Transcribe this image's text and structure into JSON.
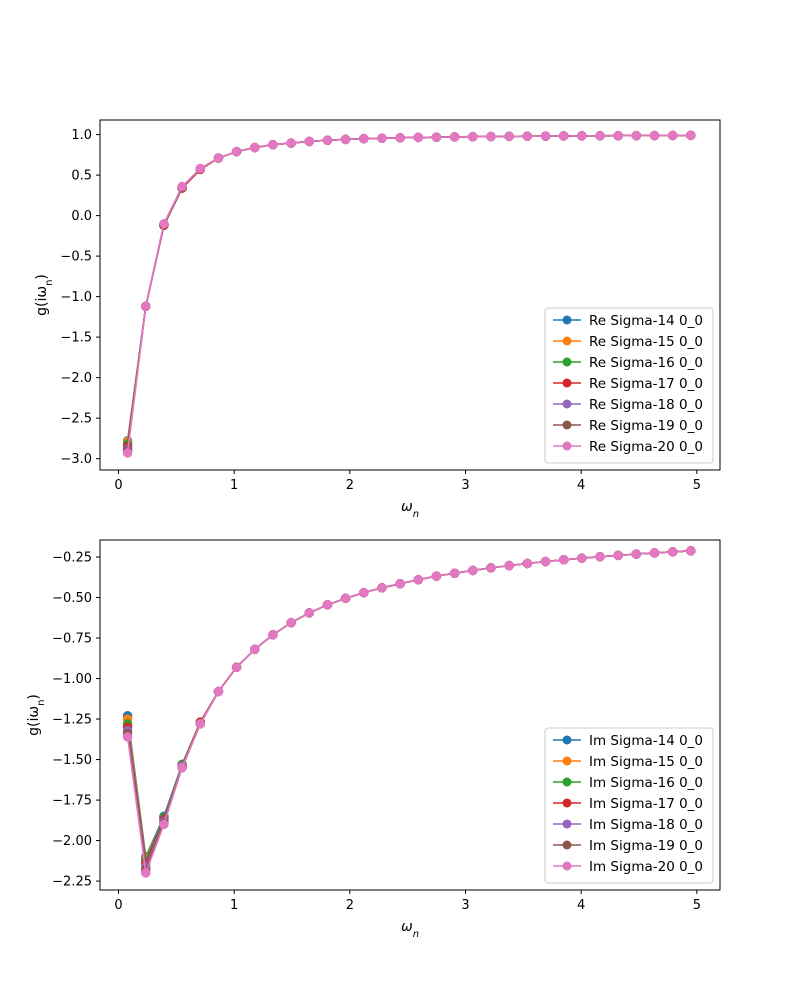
{
  "chart_data": [
    {
      "type": "line",
      "xlabel": "ω_n",
      "ylabel": "g(iω_n)",
      "xlim": [
        -0.16,
        5.2
      ],
      "ylim": [
        -3.14,
        1.18
      ],
      "xticks": [
        0,
        1,
        2,
        3,
        4,
        5
      ],
      "yticks": [
        -3.0,
        -2.5,
        -2.0,
        -1.5,
        -1.0,
        -0.5,
        0.0,
        0.5,
        1.0
      ],
      "legend_position": "lower-right",
      "grid": false,
      "x": [
        0.0785,
        0.2356,
        0.3927,
        0.5498,
        0.7069,
        0.8639,
        1.021,
        1.1781,
        1.3352,
        1.4923,
        1.6493,
        1.8064,
        1.9635,
        2.1206,
        2.2777,
        2.4347,
        2.5918,
        2.7489,
        2.906,
        3.0631,
        3.2201,
        3.3772,
        3.5343,
        3.6914,
        3.8485,
        4.0055,
        4.1626,
        4.3197,
        4.4768,
        4.6339,
        4.7909,
        4.948
      ],
      "series": [
        {
          "name": "Re Sigma-14 0_0",
          "color": "#1f77b4",
          "y": [
            -2.78,
            -1.12,
            -0.12,
            0.34,
            0.57,
            0.71,
            0.79,
            0.84,
            0.875,
            0.895,
            0.915,
            0.93,
            0.94,
            0.95,
            0.955,
            0.96,
            0.965,
            0.968,
            0.971,
            0.974,
            0.976,
            0.978,
            0.98,
            0.981,
            0.983,
            0.984,
            0.985,
            0.986,
            0.987,
            0.988,
            0.989,
            0.99
          ]
        },
        {
          "name": "Re Sigma-15 0_0",
          "color": "#ff7f0e",
          "y": [
            -2.79,
            -1.12,
            -0.12,
            0.34,
            0.57,
            0.71,
            0.79,
            0.84,
            0.875,
            0.895,
            0.915,
            0.93,
            0.94,
            0.95,
            0.955,
            0.96,
            0.965,
            0.968,
            0.971,
            0.974,
            0.976,
            0.978,
            0.98,
            0.981,
            0.983,
            0.984,
            0.985,
            0.986,
            0.987,
            0.988,
            0.989,
            0.99
          ]
        },
        {
          "name": "Re Sigma-16 0_0",
          "color": "#2ca02c",
          "y": [
            -2.82,
            -1.12,
            -0.12,
            0.34,
            0.57,
            0.71,
            0.79,
            0.84,
            0.875,
            0.895,
            0.915,
            0.93,
            0.94,
            0.95,
            0.955,
            0.96,
            0.965,
            0.968,
            0.971,
            0.974,
            0.976,
            0.978,
            0.98,
            0.981,
            0.983,
            0.984,
            0.985,
            0.986,
            0.987,
            0.988,
            0.989,
            0.99
          ]
        },
        {
          "name": "Re Sigma-17 0_0",
          "color": "#d62728",
          "y": [
            -2.85,
            -1.12,
            -0.12,
            0.34,
            0.57,
            0.71,
            0.79,
            0.84,
            0.875,
            0.895,
            0.915,
            0.93,
            0.94,
            0.95,
            0.955,
            0.96,
            0.965,
            0.968,
            0.971,
            0.974,
            0.976,
            0.978,
            0.98,
            0.981,
            0.983,
            0.984,
            0.985,
            0.986,
            0.987,
            0.988,
            0.989,
            0.99
          ]
        },
        {
          "name": "Re Sigma-18 0_0",
          "color": "#9467bd",
          "y": [
            -2.88,
            -1.12,
            -0.11,
            0.35,
            0.58,
            0.71,
            0.79,
            0.84,
            0.875,
            0.895,
            0.915,
            0.93,
            0.94,
            0.95,
            0.955,
            0.96,
            0.965,
            0.968,
            0.971,
            0.974,
            0.976,
            0.978,
            0.98,
            0.981,
            0.983,
            0.984,
            0.985,
            0.986,
            0.987,
            0.988,
            0.989,
            0.99
          ]
        },
        {
          "name": "Re Sigma-19 0_0",
          "color": "#8c564b",
          "y": [
            -2.9,
            -1.12,
            -0.11,
            0.35,
            0.58,
            0.71,
            0.79,
            0.84,
            0.875,
            0.895,
            0.915,
            0.93,
            0.94,
            0.95,
            0.955,
            0.96,
            0.965,
            0.968,
            0.971,
            0.974,
            0.976,
            0.978,
            0.98,
            0.981,
            0.983,
            0.984,
            0.985,
            0.986,
            0.987,
            0.988,
            0.989,
            0.99
          ]
        },
        {
          "name": "Re Sigma-20 0_0",
          "color": "#e377c2",
          "y": [
            -2.93,
            -1.12,
            -0.1,
            0.36,
            0.58,
            0.71,
            0.79,
            0.84,
            0.875,
            0.895,
            0.915,
            0.93,
            0.94,
            0.95,
            0.955,
            0.96,
            0.965,
            0.968,
            0.971,
            0.974,
            0.976,
            0.978,
            0.98,
            0.981,
            0.983,
            0.984,
            0.985,
            0.986,
            0.987,
            0.988,
            0.989,
            0.99
          ]
        }
      ]
    },
    {
      "type": "line",
      "xlabel": "ω_n",
      "ylabel": "g(iω_n)",
      "xlim": [
        -0.16,
        5.2
      ],
      "ylim": [
        -2.305,
        -0.145
      ],
      "xticks": [
        0,
        1,
        2,
        3,
        4,
        5
      ],
      "yticks": [
        -2.25,
        -2.0,
        -1.75,
        -1.5,
        -1.25,
        -1.0,
        -0.75,
        -0.5,
        -0.25
      ],
      "legend_position": "lower-right",
      "grid": false,
      "x": [
        0.0785,
        0.2356,
        0.3927,
        0.5498,
        0.7069,
        0.8639,
        1.021,
        1.1781,
        1.3352,
        1.4923,
        1.6493,
        1.8064,
        1.9635,
        2.1206,
        2.2777,
        2.4347,
        2.5918,
        2.7489,
        2.906,
        3.0631,
        3.2201,
        3.3772,
        3.5343,
        3.6914,
        3.8485,
        4.0055,
        4.1626,
        4.3197,
        4.4768,
        4.6339,
        4.7909,
        4.948
      ],
      "series": [
        {
          "name": "Im Sigma-14 0_0",
          "color": "#1f77b4",
          "y": [
            -1.23,
            -2.1,
            -1.85,
            -1.53,
            -1.27,
            -1.08,
            -0.93,
            -0.82,
            -0.73,
            -0.655,
            -0.595,
            -0.545,
            -0.505,
            -0.47,
            -0.44,
            -0.415,
            -0.39,
            -0.368,
            -0.35,
            -0.333,
            -0.317,
            -0.303,
            -0.29,
            -0.278,
            -0.267,
            -0.257,
            -0.248,
            -0.24,
            -0.232,
            -0.225,
            -0.218,
            -0.212
          ]
        },
        {
          "name": "Im Sigma-15 0_0",
          "color": "#ff7f0e",
          "y": [
            -1.25,
            -2.11,
            -1.86,
            -1.53,
            -1.27,
            -1.08,
            -0.93,
            -0.82,
            -0.73,
            -0.655,
            -0.595,
            -0.545,
            -0.505,
            -0.47,
            -0.44,
            -0.415,
            -0.39,
            -0.368,
            -0.35,
            -0.333,
            -0.317,
            -0.303,
            -0.29,
            -0.278,
            -0.267,
            -0.257,
            -0.248,
            -0.24,
            -0.232,
            -0.225,
            -0.218,
            -0.212
          ]
        },
        {
          "name": "Im Sigma-16 0_0",
          "color": "#2ca02c",
          "y": [
            -1.28,
            -2.12,
            -1.86,
            -1.53,
            -1.27,
            -1.08,
            -0.93,
            -0.82,
            -0.73,
            -0.655,
            -0.595,
            -0.545,
            -0.505,
            -0.47,
            -0.44,
            -0.415,
            -0.39,
            -0.368,
            -0.35,
            -0.333,
            -0.317,
            -0.303,
            -0.29,
            -0.278,
            -0.267,
            -0.257,
            -0.248,
            -0.24,
            -0.232,
            -0.225,
            -0.218,
            -0.212
          ]
        },
        {
          "name": "Im Sigma-17 0_0",
          "color": "#d62728",
          "y": [
            -1.3,
            -2.14,
            -1.87,
            -1.54,
            -1.27,
            -1.08,
            -0.93,
            -0.82,
            -0.73,
            -0.655,
            -0.595,
            -0.545,
            -0.505,
            -0.47,
            -0.44,
            -0.415,
            -0.39,
            -0.368,
            -0.35,
            -0.333,
            -0.317,
            -0.303,
            -0.29,
            -0.278,
            -0.267,
            -0.257,
            -0.248,
            -0.24,
            -0.232,
            -0.225,
            -0.218,
            -0.212
          ]
        },
        {
          "name": "Im Sigma-18 0_0",
          "color": "#9467bd",
          "y": [
            -1.32,
            -2.16,
            -1.88,
            -1.54,
            -1.28,
            -1.08,
            -0.93,
            -0.82,
            -0.73,
            -0.655,
            -0.595,
            -0.545,
            -0.505,
            -0.47,
            -0.44,
            -0.415,
            -0.39,
            -0.368,
            -0.35,
            -0.333,
            -0.317,
            -0.303,
            -0.29,
            -0.278,
            -0.267,
            -0.257,
            -0.248,
            -0.24,
            -0.232,
            -0.225,
            -0.218,
            -0.212
          ]
        },
        {
          "name": "Im Sigma-19 0_0",
          "color": "#8c564b",
          "y": [
            -1.34,
            -2.18,
            -1.89,
            -1.55,
            -1.28,
            -1.08,
            -0.93,
            -0.82,
            -0.73,
            -0.655,
            -0.595,
            -0.545,
            -0.505,
            -0.47,
            -0.44,
            -0.415,
            -0.39,
            -0.368,
            -0.35,
            -0.333,
            -0.317,
            -0.303,
            -0.29,
            -0.278,
            -0.267,
            -0.257,
            -0.248,
            -0.24,
            -0.232,
            -0.225,
            -0.218,
            -0.212
          ]
        },
        {
          "name": "Im Sigma-20 0_0",
          "color": "#e377c2",
          "y": [
            -1.36,
            -2.2,
            -1.9,
            -1.55,
            -1.28,
            -1.08,
            -0.93,
            -0.82,
            -0.73,
            -0.655,
            -0.595,
            -0.545,
            -0.505,
            -0.47,
            -0.44,
            -0.415,
            -0.39,
            -0.368,
            -0.35,
            -0.333,
            -0.317,
            -0.303,
            -0.29,
            -0.278,
            -0.267,
            -0.257,
            -0.248,
            -0.24,
            -0.232,
            -0.225,
            -0.218,
            -0.212
          ]
        }
      ]
    }
  ]
}
